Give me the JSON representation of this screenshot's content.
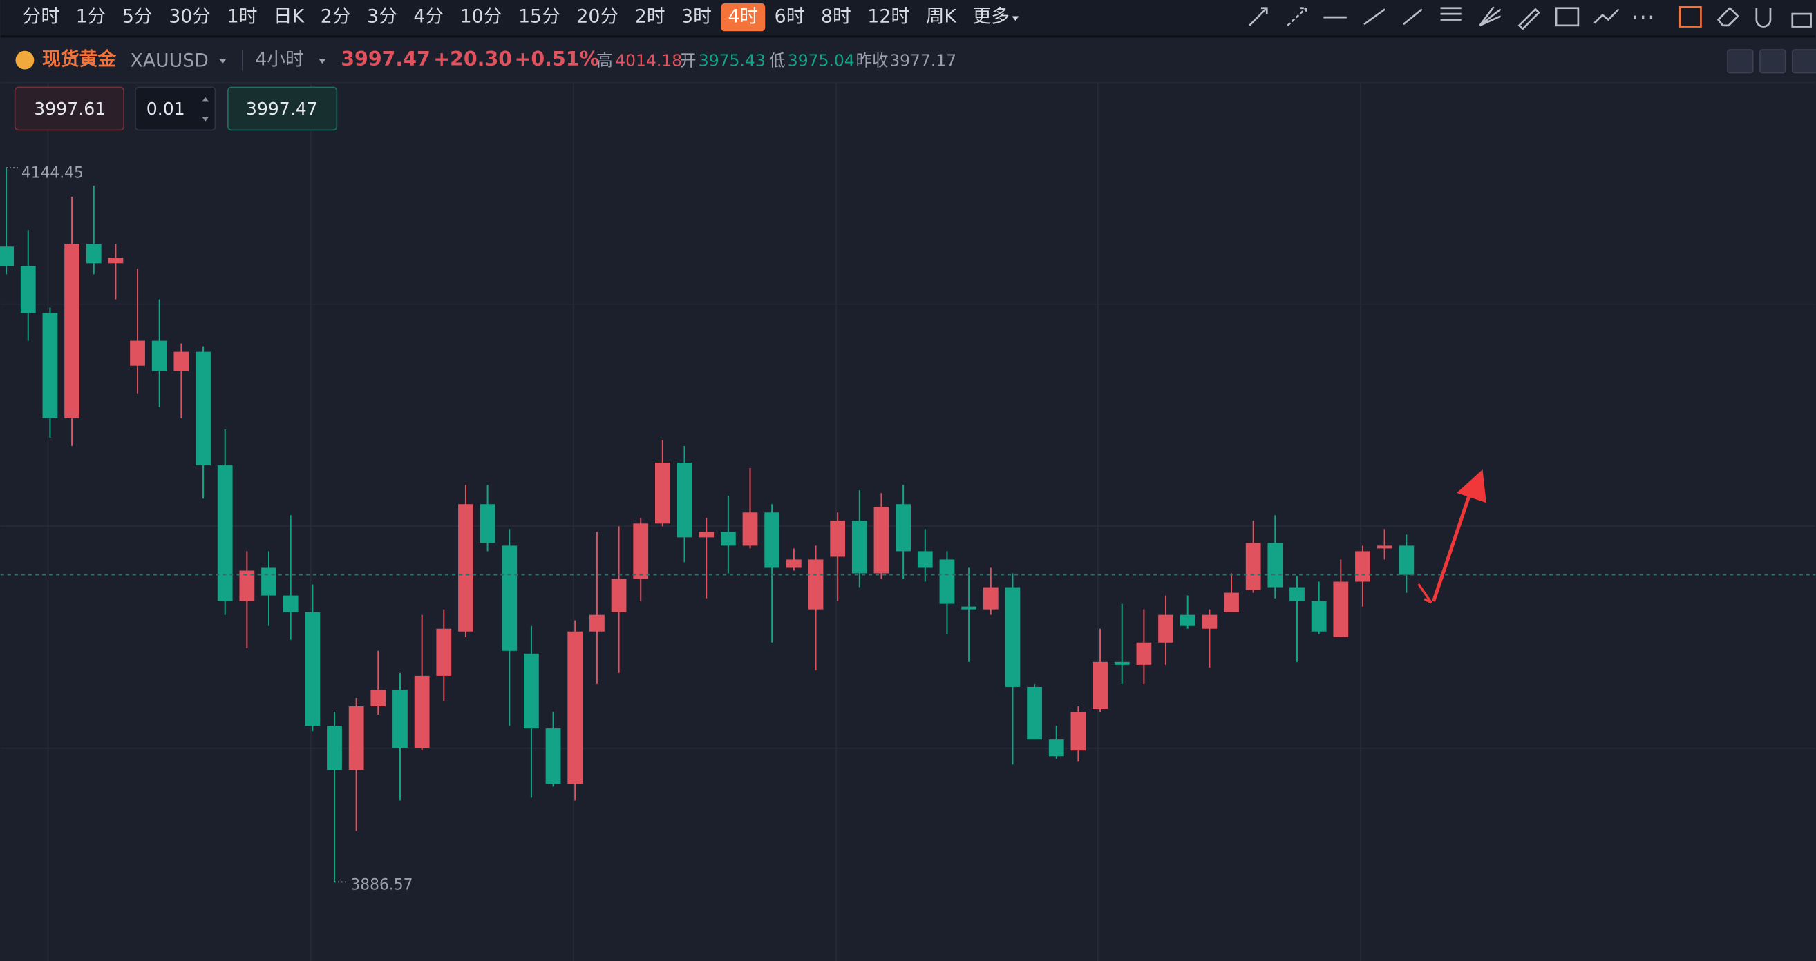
{
  "toolbar": {
    "timeframes": [
      "分时",
      "1分",
      "5分",
      "30分",
      "1时",
      "日K",
      "2分",
      "3分",
      "4分",
      "10分",
      "15分",
      "20分",
      "2时",
      "3时",
      "4时",
      "6时",
      "8时",
      "12时",
      "周K",
      "更多"
    ],
    "active": "4时"
  },
  "header": {
    "name": "现货黄金",
    "symbol": "XAUUSD",
    "interval": "4小时",
    "price": 3997.47,
    "change": "+20.30",
    "change_pct": "+0.51%",
    "high_label": "高",
    "high": 4014.18,
    "open_label": "开",
    "open": 3975.43,
    "low_label": "低",
    "low": 3975.04,
    "prev_close_label": "昨收",
    "prev_close": 3977.17
  },
  "order": {
    "sell": 3997.61,
    "qty": 0.01,
    "buy": 3997.47
  },
  "chart_data": {
    "type": "candlestick",
    "ylim": [
      3858,
      4175
    ],
    "up_color": "#e0525e",
    "down_color": "#13a386",
    "max_label": 4144.45,
    "min_label": 3886.57,
    "open": [
      4116,
      4109,
      4092,
      4054,
      4117,
      4110,
      4073,
      4082,
      4071,
      4078,
      4037,
      3988,
      4000,
      3990,
      3984,
      3943,
      3927,
      3950,
      3956,
      3935,
      3961,
      3977,
      4023,
      4008,
      3969,
      3942,
      3922,
      3977,
      3984,
      3996,
      4016,
      4038,
      4011,
      4013,
      4008,
      4020,
      4000,
      3985,
      4004,
      4017,
      3998,
      4023,
      4006,
      4003,
      3986,
      3985,
      3993,
      3957,
      3938,
      3934,
      3949,
      3966,
      3965,
      3973,
      3983,
      3978,
      3984,
      3992,
      4009,
      3993,
      3988,
      3975,
      3995,
      4007,
      4008
    ],
    "high": [
      4144.45,
      4122,
      4094,
      4134,
      4138,
      4117,
      4108,
      4097,
      4081,
      4080,
      4050,
      4006,
      4006,
      4019,
      3994,
      3948,
      3953,
      3970,
      3962,
      3983,
      3985,
      4030,
      4030,
      4014,
      3979,
      3948,
      3981,
      4013,
      4015,
      4018,
      4046,
      4044,
      4018,
      4026,
      4036,
      4023,
      4007,
      4008,
      4020,
      4028,
      4027,
      4030,
      4014,
      4006,
      4000,
      4000,
      3998,
      3958,
      3943,
      3950,
      3978,
      3987,
      3985,
      3990,
      3990,
      3985,
      3998,
      4017,
      4019,
      3997,
      3995,
      4003,
      4008,
      4014,
      4012
    ],
    "low": [
      4106,
      4082,
      4047,
      4044,
      4106,
      4097,
      4063,
      4058,
      4054,
      4025,
      3983,
      3971,
      3979,
      3974,
      3941,
      3886.57,
      3905,
      3947,
      3916,
      3934,
      3952,
      3975,
      4006,
      3943,
      3917,
      3921,
      3916,
      3958,
      3962,
      3988,
      4015,
      4002,
      3989,
      3998,
      4007,
      3973,
      3999,
      3963,
      3988,
      3993,
      3996,
      3996,
      3995,
      3976,
      3966,
      3983,
      3929,
      3938,
      3931,
      3930,
      3948,
      3958,
      3958,
      3965,
      3978,
      3964,
      3984,
      3991,
      3989,
      3966,
      3976,
      3975,
      3986,
      4003,
      3991
    ],
    "close": [
      4109,
      4092,
      4054,
      4117,
      4110,
      4112,
      4082,
      4071,
      4078,
      4037,
      3988,
      3999,
      3990,
      3984,
      3943,
      3927,
      3950,
      3956,
      3935,
      3961,
      3978,
      4023,
      4009,
      3970,
      3942,
      3922,
      3977,
      3983,
      3996,
      4016,
      4038,
      4011,
      4013,
      4008,
      4020,
      4000,
      4003,
      4003,
      4017,
      3998,
      4022,
      4006,
      4000,
      3987,
      3985,
      3993,
      3957,
      3938,
      3932,
      3948,
      3966,
      3965,
      3973,
      3983,
      3979,
      3983,
      3991,
      4009,
      3993,
      3988,
      3977,
      3995,
      4006,
      4008,
      3997.47
    ]
  }
}
